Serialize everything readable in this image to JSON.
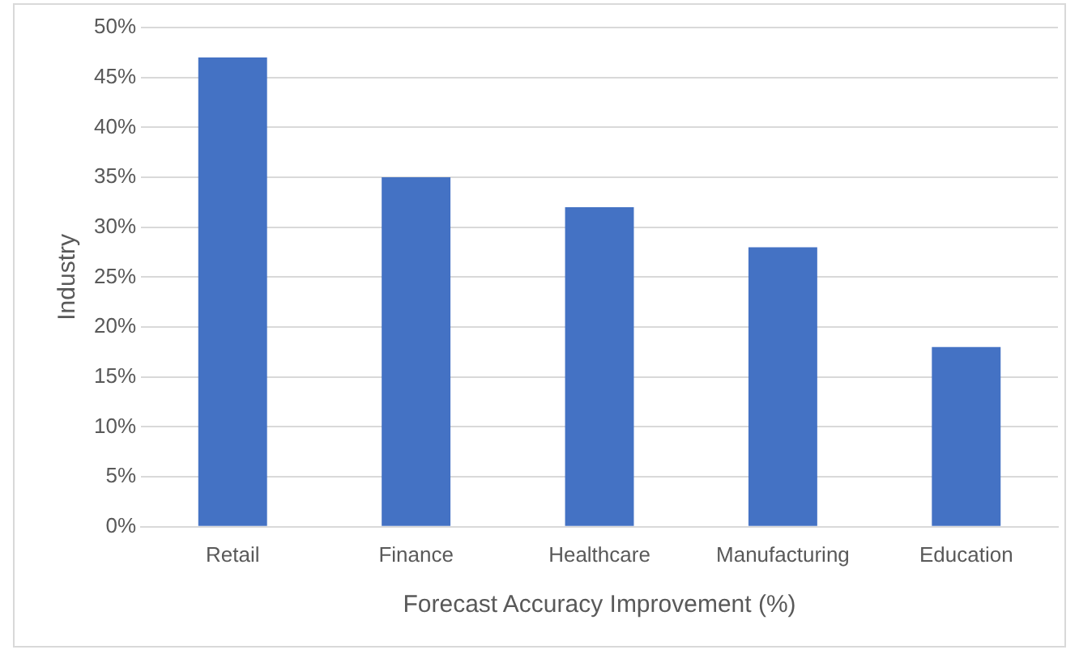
{
  "chart_data": {
    "type": "bar",
    "xlabel": "Forecast Accuracy Improvement (%)",
    "ylabel": "Industry",
    "categories": [
      "Retail",
      "Finance",
      "Healthcare",
      "Manufacturing",
      "Education"
    ],
    "values": [
      47,
      35,
      32,
      28,
      18
    ],
    "color": "#4472c4",
    "ylim": [
      0,
      50
    ],
    "yticks": [
      {
        "value": 0,
        "label": "0%"
      },
      {
        "value": 5,
        "label": "5%"
      },
      {
        "value": 10,
        "label": "10%"
      },
      {
        "value": 15,
        "label": "15%"
      },
      {
        "value": 20,
        "label": "20%"
      },
      {
        "value": 25,
        "label": "25%"
      },
      {
        "value": 30,
        "label": "30%"
      },
      {
        "value": 35,
        "label": "35%"
      },
      {
        "value": 40,
        "label": "40%"
      },
      {
        "value": 45,
        "label": "45%"
      },
      {
        "value": 50,
        "label": "50%"
      }
    ],
    "grid": "y"
  }
}
